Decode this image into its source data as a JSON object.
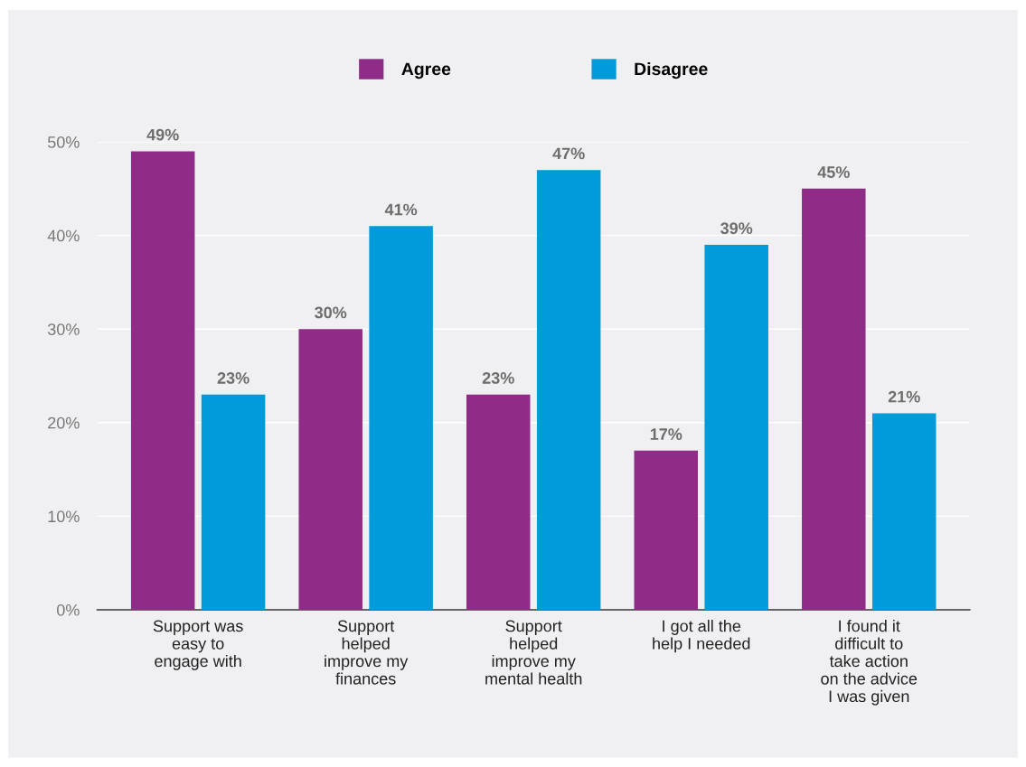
{
  "chart_data": {
    "type": "bar",
    "categories": [
      "Support was\neasy to\nengage with",
      "Support\nhelped\nimprove my\nfinances",
      "Support\nhelped\nimprove my\nmental health",
      "I got all the\nhelp I needed",
      "I found it\ndifficult to\ntake action\non the advice\nI was given"
    ],
    "series": [
      {
        "name": "Agree",
        "color": "#8e2c87",
        "values": [
          49,
          30,
          23,
          17,
          45
        ],
        "value_labels": [
          "49%",
          "30%",
          "23%",
          "17%",
          "45%"
        ]
      },
      {
        "name": "Disagree",
        "color": "#009bd9",
        "values": [
          23,
          41,
          47,
          39,
          21
        ],
        "value_labels": [
          "23%",
          "41%",
          "47%",
          "39%",
          "21%"
        ]
      }
    ],
    "ylim": [
      0,
      50
    ],
    "yticks": [
      {
        "value": 0,
        "label": "0%"
      },
      {
        "value": 10,
        "label": "10%"
      },
      {
        "value": 20,
        "label": "20%"
      },
      {
        "value": 30,
        "label": "30%"
      },
      {
        "value": 40,
        "label": "40%"
      },
      {
        "value": 50,
        "label": "50%"
      }
    ],
    "grid": "y",
    "legend": "top"
  }
}
